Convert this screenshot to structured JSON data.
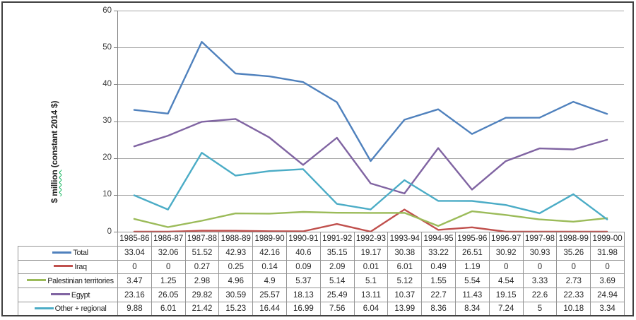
{
  "chart_data": {
    "type": "line",
    "title": "",
    "ylabel": "$ million (constant 2014 $)",
    "ylabel_parts": {
      "prefix": "$ ",
      "word": "million",
      "suffix": " (constant 2014 $)"
    },
    "xlabel": "",
    "ylim": [
      0,
      60
    ],
    "yticks": [
      0,
      10,
      20,
      30,
      40,
      50,
      60
    ],
    "grid": "horizontal",
    "legend_position": "data-table-left-column",
    "categories": [
      "1985-86",
      "1986-87",
      "1987-88",
      "1988-89",
      "1989-90",
      "1990-91",
      "1991-92",
      "1992-93",
      "1993-94",
      "1994-95",
      "1995-96",
      "1996-97",
      "1997-98",
      "1998-99",
      "1999-00"
    ],
    "series": [
      {
        "name": "Total",
        "color": "#4F81BD",
        "values": [
          33.04,
          32.06,
          51.52,
          42.93,
          42.16,
          40.6,
          35.15,
          19.17,
          30.38,
          33.22,
          26.51,
          30.92,
          30.93,
          35.26,
          31.98
        ]
      },
      {
        "name": "Iraq",
        "color": "#C0504D",
        "values": [
          0,
          0,
          0.27,
          0.25,
          0.14,
          0.09,
          2.09,
          0.01,
          6.01,
          0.49,
          1.19,
          0,
          0,
          0,
          0
        ]
      },
      {
        "name": "Palestinian territories",
        "color": "#9BBB59",
        "values": [
          3.47,
          1.25,
          2.98,
          4.96,
          4.9,
          5.37,
          5.14,
          5.1,
          5.12,
          1.55,
          5.54,
          4.54,
          3.33,
          2.73,
          3.69
        ]
      },
      {
        "name": "Egypt",
        "color": "#8064A2",
        "values": [
          23.16,
          26.05,
          29.82,
          30.59,
          25.57,
          18.13,
          25.49,
          13.11,
          10.37,
          22.7,
          11.43,
          19.15,
          22.6,
          22.33,
          24.94
        ]
      },
      {
        "name": "Other + regional",
        "color": "#4BACC6",
        "values": [
          9.88,
          6.01,
          21.42,
          15.23,
          16.44,
          16.99,
          7.56,
          6.04,
          13.99,
          8.36,
          8.34,
          7.24,
          5,
          10.18,
          3.34
        ]
      }
    ],
    "theme": {
      "gridline_color": "#A6A6A6",
      "axis_color": "#808080",
      "table_border_color": "#969696",
      "text_color": "#262626",
      "frame_color": "#404040",
      "background": "#FFFFFF"
    }
  }
}
